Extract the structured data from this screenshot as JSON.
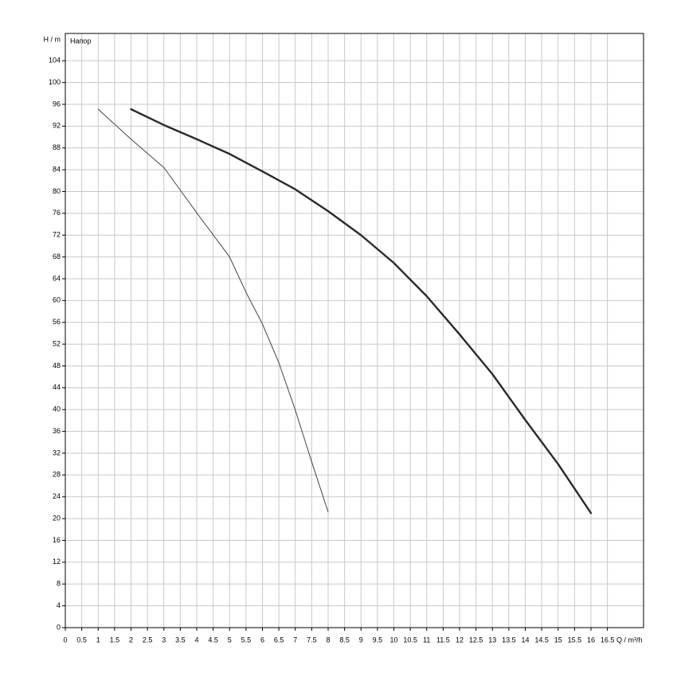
{
  "chart_data": {
    "type": "line",
    "ylabel": "H / m",
    "xlabel": "Q / m³/h",
    "annotation": "Напор",
    "xlim": [
      0,
      17.6
    ],
    "ylim": [
      0,
      109
    ],
    "xticks": [
      0,
      0.5,
      1,
      1.5,
      2,
      2.5,
      3,
      3.5,
      4,
      4.5,
      5,
      5.5,
      6,
      6.5,
      7,
      7.5,
      8,
      8.5,
      9,
      9.5,
      10,
      10.5,
      11,
      11.5,
      12,
      12.5,
      13,
      13.5,
      14,
      14.5,
      15,
      15.5,
      16,
      16.5
    ],
    "yticks": [
      0,
      4,
      8,
      12,
      16,
      20,
      24,
      28,
      32,
      36,
      40,
      44,
      48,
      52,
      56,
      60,
      64,
      68,
      72,
      76,
      80,
      84,
      88,
      92,
      96,
      100,
      104
    ],
    "grid": true,
    "series": [
      {
        "color": "#444444",
        "width": 1,
        "x": [
          1,
          2,
          3,
          4,
          5,
          5.5,
          6,
          6.5,
          7,
          7.5,
          8
        ],
        "values": [
          95.1,
          89.6,
          84.4,
          76.1,
          68,
          61.5,
          55.7,
          48.6,
          39.9,
          30.4,
          21.2
        ]
      },
      {
        "color": "#2a2a2a",
        "width": 2.4,
        "x": [
          2,
          3,
          4,
          5,
          6,
          7,
          8,
          9,
          10,
          11,
          12,
          13,
          14,
          15,
          16
        ],
        "values": [
          95.1,
          92.2,
          89.6,
          86.9,
          83.7,
          80.4,
          76.4,
          72,
          66.9,
          60.8,
          53.8,
          46.5,
          38.1,
          30,
          21
        ]
      }
    ]
  }
}
